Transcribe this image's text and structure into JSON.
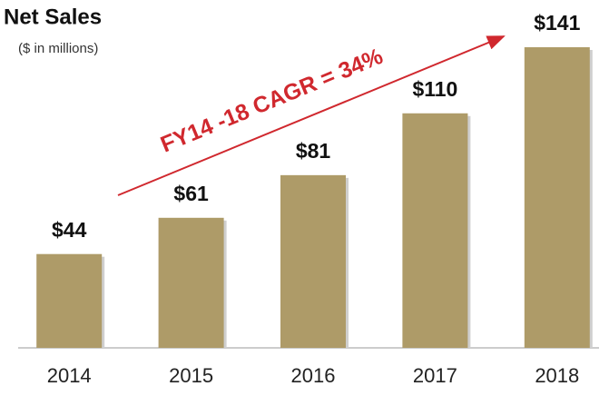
{
  "chart_data": {
    "type": "bar",
    "title": "Net Sales",
    "subtitle": "($ in millions)",
    "annotation": "FY14 -18 CAGR = 34%",
    "categories": [
      "2014",
      "2015",
      "2016",
      "2017",
      "2018"
    ],
    "values": [
      44,
      61,
      81,
      110,
      141
    ],
    "value_labels": [
      "$44",
      "$61",
      "$81",
      "$110",
      "$141"
    ],
    "color": "#ae9b68",
    "annotation_color": "#d0282e"
  }
}
